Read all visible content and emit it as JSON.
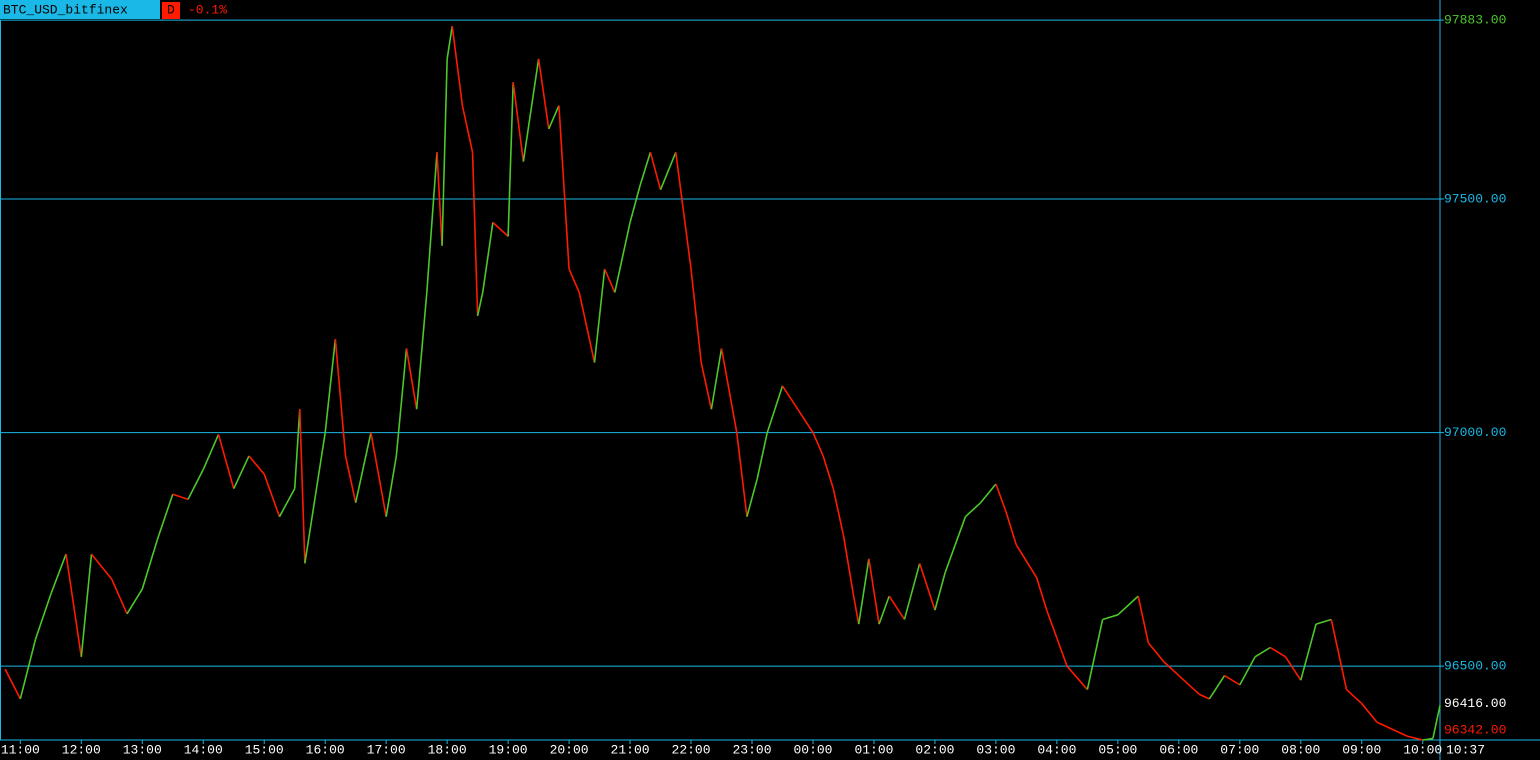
{
  "chart_data": {
    "type": "line",
    "title": "BTC_USD_bitfinex",
    "interval": "D",
    "change": "-0.1%",
    "current_time": "10:37",
    "up_color": "#4cc829",
    "down_color": "#ff1a00",
    "grid_color": "#1ab8e6",
    "ylim": [
      96342,
      97926
    ],
    "yticks": [
      {
        "value": 97500,
        "label": "97500.00"
      },
      {
        "value": 97000,
        "label": "97000.00"
      },
      {
        "value": 96500,
        "label": "96500.00"
      }
    ],
    "high": {
      "value": 97883,
      "label": "97883.00"
    },
    "last": {
      "value": 96416,
      "label": "96416.00"
    },
    "low": {
      "value": 96342,
      "label": "96342.00"
    },
    "xlim": [
      "10:40",
      "10:17"
    ],
    "xticks": [
      "11:00",
      "12:00",
      "13:00",
      "14:00",
      "15:00",
      "16:00",
      "17:00",
      "18:00",
      "19:00",
      "20:00",
      "21:00",
      "22:00",
      "23:00",
      "00:00",
      "01:00",
      "02:00",
      "03:00",
      "04:00",
      "05:00",
      "06:00",
      "07:00",
      "08:00",
      "09:00",
      "10:00"
    ],
    "x": [
      "10:45",
      "11:00",
      "11:15",
      "11:30",
      "11:45",
      "12:00",
      "12:10",
      "12:30",
      "12:45",
      "13:00",
      "13:15",
      "13:30",
      "13:45",
      "14:00",
      "14:15",
      "14:30",
      "14:45",
      "15:00",
      "15:15",
      "15:30",
      "15:35",
      "15:40",
      "16:00",
      "16:10",
      "16:20",
      "16:30",
      "16:45",
      "17:00",
      "17:10",
      "17:20",
      "17:30",
      "17:40",
      "17:50",
      "17:55",
      "18:00",
      "18:05",
      "18:15",
      "18:25",
      "18:30",
      "18:35",
      "18:45",
      "19:00",
      "19:05",
      "19:15",
      "19:30",
      "19:40",
      "19:50",
      "20:00",
      "20:10",
      "20:15",
      "20:25",
      "20:35",
      "20:45",
      "21:00",
      "21:10",
      "21:20",
      "21:30",
      "21:45",
      "22:00",
      "22:10",
      "22:20",
      "22:30",
      "22:45",
      "22:55",
      "23:05",
      "23:15",
      "23:30",
      "23:45",
      "00:00",
      "00:10",
      "00:20",
      "00:30",
      "00:40",
      "00:45",
      "00:55",
      "01:05",
      "01:15",
      "01:30",
      "01:45",
      "02:00",
      "02:10",
      "02:30",
      "02:45",
      "03:00",
      "03:10",
      "03:20",
      "03:40",
      "03:50",
      "04:00",
      "04:10",
      "04:30",
      "04:45",
      "05:00",
      "05:20",
      "05:30",
      "05:45",
      "06:00",
      "06:20",
      "06:30",
      "06:45",
      "07:00",
      "07:15",
      "07:30",
      "07:45",
      "08:00",
      "08:15",
      "08:30",
      "08:45",
      "09:00",
      "09:15",
      "09:30",
      "09:45",
      "10:00",
      "10:10",
      "10:17"
    ],
    "values": [
      96494,
      96430,
      96558,
      96654,
      96740,
      96520,
      96740,
      96686,
      96612,
      96665,
      96772,
      96868,
      96857,
      96921,
      96996,
      96880,
      96950,
      96911,
      96820,
      96880,
      97050,
      96720,
      97000,
      97200,
      96950,
      96850,
      97000,
      96820,
      96950,
      97180,
      97050,
      97300,
      97600,
      97400,
      97800,
      97870,
      97700,
      97600,
      97250,
      97300,
      97450,
      97420,
      97750,
      97580,
      97800,
      97650,
      97700,
      97350,
      97300,
      97250,
      97150,
      97350,
      97300,
      97450,
      97530,
      97600,
      97520,
      97600,
      97350,
      97150,
      97050,
      97180,
      97000,
      96820,
      96900,
      97000,
      97100,
      97050,
      97000,
      96950,
      96880,
      96780,
      96650,
      96590,
      96730,
      96590,
      96650,
      96600,
      96720,
      96620,
      96700,
      96820,
      96850,
      96890,
      96830,
      96760,
      96690,
      96620,
      96560,
      96500,
      96450,
      96600,
      96610,
      96650,
      96550,
      96510,
      96480,
      96440,
      96430,
      96480,
      96460,
      96520,
      96540,
      96520,
      96470,
      96590,
      96600,
      96450,
      96420,
      96380,
      96365,
      96350,
      96342,
      96345,
      96416
    ]
  }
}
